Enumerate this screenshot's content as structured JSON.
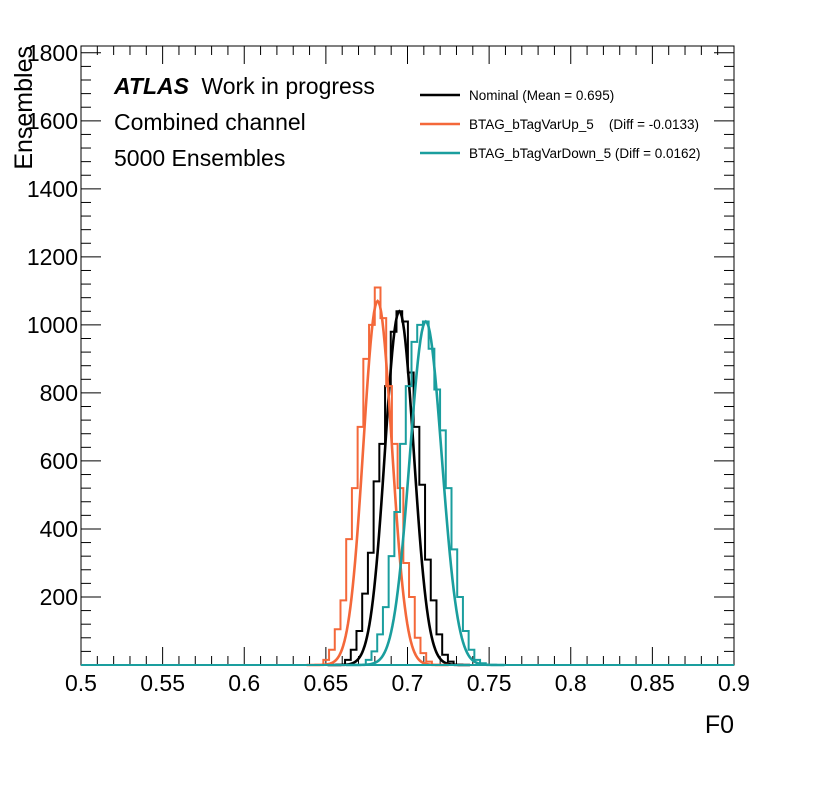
{
  "chart_data": {
    "type": "line",
    "title": "",
    "xlabel": "F0",
    "ylabel": "Ensembles",
    "xlim": [
      0.5,
      0.9
    ],
    "ylim": [
      0,
      1820
    ],
    "x_ticks": [
      "0.5",
      "0.55",
      "0.6",
      "0.65",
      "0.7",
      "0.75",
      "0.8",
      "0.85",
      "0.9"
    ],
    "y_ticks": [
      "200",
      "400",
      "600",
      "800",
      "1000",
      "1200",
      "1400",
      "1600",
      "1800"
    ],
    "grid": false,
    "legend_position": "top-right",
    "annotations": {
      "atlas": "ATLAS",
      "status": "Work in progress",
      "channel": "Combined channel",
      "ensembles": "5000 Ensembles"
    },
    "series": [
      {
        "name": "Nominal (Mean = 0.695)",
        "color": "#000000",
        "gaussian_fit": {
          "mean": 0.695,
          "sigma": 0.0088,
          "peak": 1040
        },
        "bin_width": 0.0035,
        "hist_x": [
          0.6635,
          0.667,
          0.6705,
          0.674,
          0.6775,
          0.681,
          0.6845,
          0.688,
          0.6915,
          0.695,
          0.6985,
          0.702,
          0.7055,
          0.709,
          0.7125,
          0.716,
          0.7195,
          0.723,
          0.7265
        ],
        "hist_y": [
          15,
          45,
          100,
          210,
          330,
          540,
          650,
          820,
          980,
          1040,
          1010,
          860,
          700,
          530,
          310,
          190,
          90,
          30,
          10
        ]
      },
      {
        "name": "BTAG_bTagVarUp_5    (Diff = -0.0133)",
        "color": "#f4683a",
        "gaussian_fit": {
          "mean": 0.6817,
          "sigma": 0.0087,
          "peak": 1070
        },
        "bin_width": 0.0035,
        "hist_x": [
          0.6502,
          0.6537,
          0.6572,
          0.6607,
          0.6642,
          0.6677,
          0.6712,
          0.6747,
          0.6782,
          0.6817,
          0.6852,
          0.6887,
          0.6922,
          0.6957,
          0.6992,
          0.7027,
          0.7062,
          0.7097,
          0.7132
        ],
        "hist_y": [
          15,
          45,
          105,
          190,
          370,
          520,
          700,
          900,
          1000,
          1110,
          1020,
          820,
          650,
          520,
          300,
          200,
          80,
          35,
          10
        ]
      },
      {
        "name": "BTAG_bTagVarDown_5 (Diff = 0.0162)",
        "color": "#1a9e9e",
        "gaussian_fit": {
          "mean": 0.7112,
          "sigma": 0.0098,
          "peak": 1010
        },
        "bin_width": 0.0035,
        "hist_x": [
          0.6762,
          0.6797,
          0.6832,
          0.6867,
          0.6902,
          0.6937,
          0.6972,
          0.7007,
          0.7042,
          0.7077,
          0.7112,
          0.7147,
          0.7182,
          0.7217,
          0.7252,
          0.7287,
          0.7322,
          0.7357,
          0.7392,
          0.7427,
          0.7462
        ],
        "hist_y": [
          15,
          40,
          90,
          170,
          320,
          450,
          650,
          820,
          950,
          1000,
          1010,
          930,
          810,
          690,
          520,
          340,
          200,
          100,
          45,
          15,
          5
        ]
      }
    ]
  }
}
